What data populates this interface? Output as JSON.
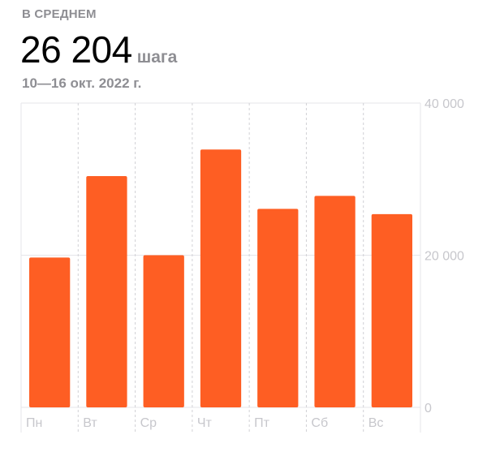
{
  "header": {
    "label": "В СРЕДНЕМ",
    "value": "26 204",
    "unit": "шага",
    "date_range": "10—16 окт. 2022 г."
  },
  "chart_data": {
    "type": "bar",
    "categories": [
      "Пн",
      "Вт",
      "Ср",
      "Чт",
      "Пт",
      "Сб",
      "Вс"
    ],
    "values": [
      19700,
      30400,
      20000,
      33900,
      26100,
      27800,
      25400
    ],
    "ylim": [
      0,
      40000
    ],
    "yticks": [
      0,
      20000,
      40000
    ],
    "ytick_labels": [
      "0",
      "20 000",
      "40 000"
    ],
    "axis_side": "right",
    "grid": true,
    "bar_color": "#fe5e23"
  }
}
